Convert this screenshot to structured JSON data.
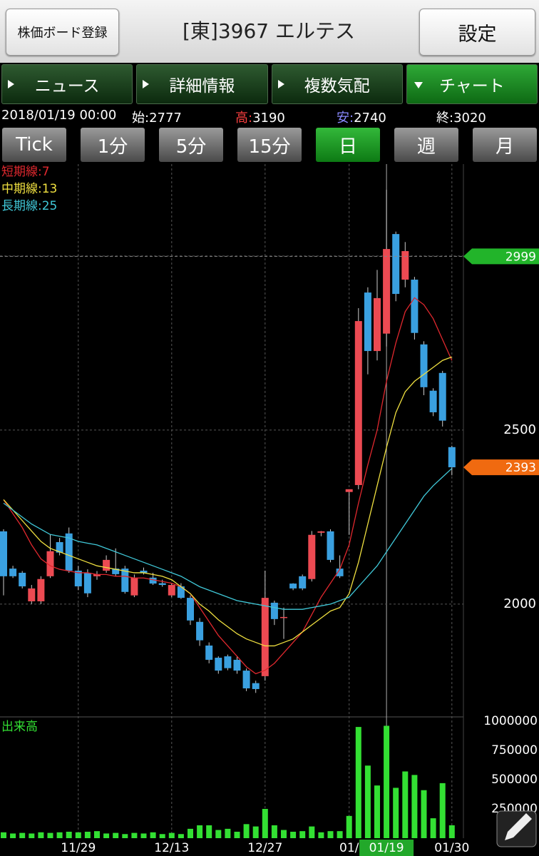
{
  "header": {
    "register_button": "株価ボード登録",
    "title": "[東]3967 エルテス",
    "settings_button": "設定"
  },
  "tabs": [
    "ニュース",
    "詳細情報",
    "複数気配",
    "チャート"
  ],
  "active_tab": 3,
  "info": {
    "datetime": "2018/01/19 00:00",
    "labels": [
      "始:",
      "高:",
      "安:",
      "終:"
    ]
  },
  "periods": [
    "Tick",
    "1分",
    "5分",
    "15分",
    "日",
    "週",
    "月"
  ],
  "active_period": 4,
  "chart_data": {
    "type": "candlestick",
    "categories": [
      null,
      null,
      null,
      null,
      null,
      null,
      null,
      null,
      "11/29",
      null,
      null,
      null,
      null,
      null,
      null,
      null,
      null,
      null,
      "12/13",
      null,
      null,
      null,
      null,
      null,
      null,
      null,
      null,
      null,
      "12/27",
      null,
      null,
      null,
      null,
      null,
      null,
      null,
      null,
      "01/",
      null,
      null,
      null,
      "01/19",
      null,
      null,
      null,
      null,
      null,
      null,
      "01/30"
    ],
    "selected": 41,
    "open": [
      2209,
      2102,
      2090,
      2008,
      2008,
      2080,
      2178,
      2203,
      2096,
      2090,
      2080,
      2096,
      2102,
      2102,
      2025,
      2096,
      2076,
      2060,
      2025,
      2051,
      2018,
      1949,
      1881,
      1846,
      1850,
      1840,
      1809,
      1773,
      1793,
      2004,
      1960,
      2059,
      2080,
      2072,
      2205,
      2209,
      2102,
      2322,
      2342,
      2895,
      2727,
      2777,
      3063,
      2932,
      2932,
      2746,
      2613,
      2664,
      2451
    ],
    "high": [
      2215,
      2110,
      2095,
      2055,
      2080,
      2200,
      2190,
      2220,
      2110,
      2100,
      2095,
      2140,
      2160,
      2110,
      2085,
      2105,
      2090,
      2070,
      2060,
      2060,
      2025,
      1960,
      1890,
      1850,
      1855,
      1850,
      1815,
      1780,
      2096,
      2010,
      1990,
      2060,
      2085,
      2210,
      2210,
      2215,
      2140,
      2330,
      2850,
      2910,
      2960,
      3190,
      3070,
      3040,
      2940,
      2755,
      2620,
      2670,
      2455
    ],
    "low": [
      2025,
      2075,
      2045,
      2000,
      2000,
      2075,
      2140,
      2090,
      2040,
      2020,
      2070,
      2090,
      2080,
      2030,
      2020,
      2085,
      2055,
      2050,
      2020,
      2015,
      1940,
      1880,
      1830,
      1800,
      1810,
      1800,
      1750,
      1745,
      1780,
      1940,
      1900,
      2040,
      2040,
      2065,
      2195,
      2120,
      2075,
      2199,
      2330,
      2660,
      2700,
      2740,
      2870,
      2910,
      2760,
      2600,
      2540,
      2510,
      2370
    ],
    "close": [
      2080,
      2080,
      2051,
      2045,
      2072,
      2152,
      2148,
      2096,
      2051,
      2031,
      2086,
      2127,
      2086,
      2035,
      2076,
      2090,
      2059,
      2055,
      2055,
      2018,
      1953,
      1896,
      1840,
      1809,
      1816,
      1809,
      1758,
      1756,
      2018,
      1957,
      1963,
      2045,
      2045,
      2199,
      2209,
      2127,
      2080,
      2330,
      2813,
      2727,
      2879,
      3020,
      2891,
      3014,
      2779,
      2623,
      2551,
      2527,
      2393
    ],
    "up_color": "#ec4a52",
    "down_color": "#3aa0e0",
    "ylim": [
      1676,
      3264
    ],
    "yticks": [
      2000,
      2500,
      3000
    ],
    "grid": true,
    "ma": [
      {
        "name": "短期線:7",
        "color": "#e0282e",
        "values": [
          2300,
          2260,
          2220,
          2170,
          2130,
          2110,
          2100,
          2095,
          2090,
          2090,
          2085,
          2085,
          2080,
          2080,
          2075,
          2075,
          2070,
          2065,
          2060,
          2050,
          2030,
          1990,
          1950,
          1910,
          1880,
          1850,
          1820,
          1800,
          1810,
          1830,
          1860,
          1890,
          1920,
          1970,
          2020,
          2060,
          2100,
          2170,
          2290,
          2400,
          2500,
          2640,
          2750,
          2840,
          2880,
          2860,
          2820,
          2760,
          2700
        ]
      },
      {
        "name": "中期線:13",
        "color": "#f0e040",
        "values": [
          2300,
          2270,
          2240,
          2210,
          2180,
          2160,
          2150,
          2140,
          2130,
          2120,
          2110,
          2105,
          2100,
          2095,
          2090,
          2090,
          2085,
          2080,
          2070,
          2050,
          2030,
          2000,
          1980,
          1955,
          1935,
          1915,
          1900,
          1890,
          1880,
          1880,
          1890,
          1900,
          1920,
          1940,
          1960,
          1980,
          1990,
          2030,
          2120,
          2230,
          2340,
          2450,
          2550,
          2610,
          2640,
          2660,
          2680,
          2700,
          2710
        ]
      },
      {
        "name": "長期線:25",
        "color": "#40c8d8",
        "values": [
          2290,
          2270,
          2250,
          2230,
          2215,
          2200,
          2195,
          2190,
          2180,
          2175,
          2170,
          2160,
          2150,
          2140,
          2130,
          2120,
          2110,
          2100,
          2090,
          2080,
          2065,
          2050,
          2040,
          2030,
          2020,
          2010,
          2005,
          2000,
          1995,
          1990,
          1985,
          1985,
          1985,
          1990,
          1995,
          2000,
          2010,
          2020,
          2050,
          2080,
          2110,
          2150,
          2190,
          2230,
          2270,
          2310,
          2340,
          2365,
          2390
        ]
      }
    ],
    "markers": [
      {
        "value": 2999,
        "color": "#22b42a"
      },
      {
        "value": 2393,
        "color": "#f06a10"
      }
    ],
    "volume": {
      "label": "出来高",
      "color": "#33e033",
      "values": [
        50000,
        40000,
        45000,
        40000,
        50000,
        45000,
        50000,
        55000,
        50000,
        55000,
        60000,
        40000,
        45000,
        35000,
        45000,
        40000,
        50000,
        35000,
        45000,
        35000,
        80000,
        110000,
        110000,
        70000,
        80000,
        55000,
        120000,
        100000,
        250000,
        110000,
        70000,
        55000,
        60000,
        100000,
        50000,
        60000,
        60000,
        190000,
        950000,
        620000,
        450000,
        960000,
        430000,
        570000,
        540000,
        410000,
        170000,
        470000,
        110000
      ],
      "ylim": [
        0,
        1036000
      ],
      "yticks": [
        1000000,
        750000,
        500000,
        250000
      ]
    }
  }
}
